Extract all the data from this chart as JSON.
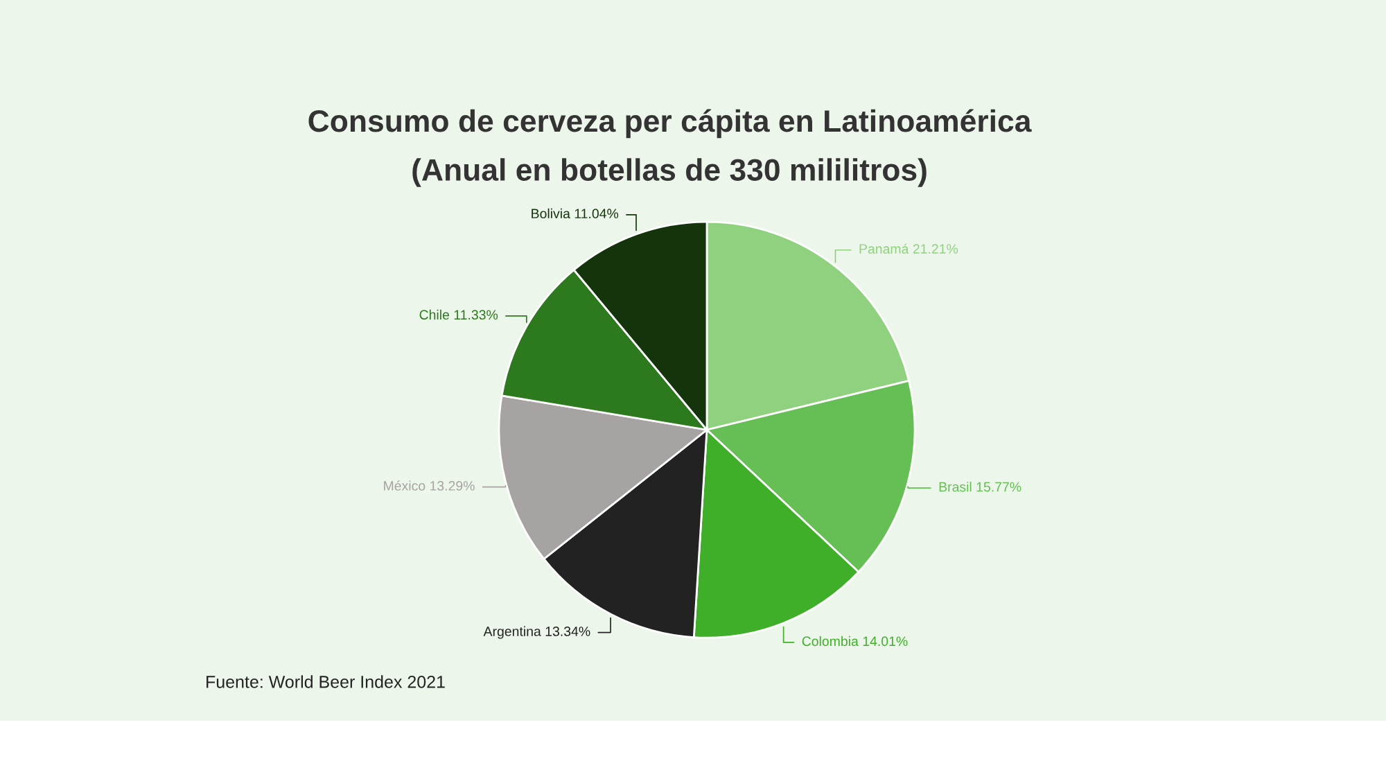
{
  "chart_data": {
    "type": "pie",
    "title": "Consumo de cerveza per cápita en Latinoamérica\n(Anual en botellas de 330 mililitros)",
    "categories": [
      "Panamá",
      "Brasil",
      "Colombia",
      "Argentina",
      "México",
      "Chile",
      "Bolivia"
    ],
    "values": [
      21.21,
      15.77,
      14.01,
      13.34,
      13.29,
      11.33,
      11.04
    ],
    "value_labels": [
      "21.21%",
      "15.77%",
      "14.01%",
      "13.34%",
      "13.29%",
      "11.33%",
      "11.04%"
    ],
    "colors": [
      "#8fd17f",
      "#66bf55",
      "#3faf2a",
      "#222222",
      "#a6a3a2",
      "#2d7a1e",
      "#14340c"
    ],
    "annotations": [
      "Fuente: World Beer Index 2021"
    ]
  }
}
